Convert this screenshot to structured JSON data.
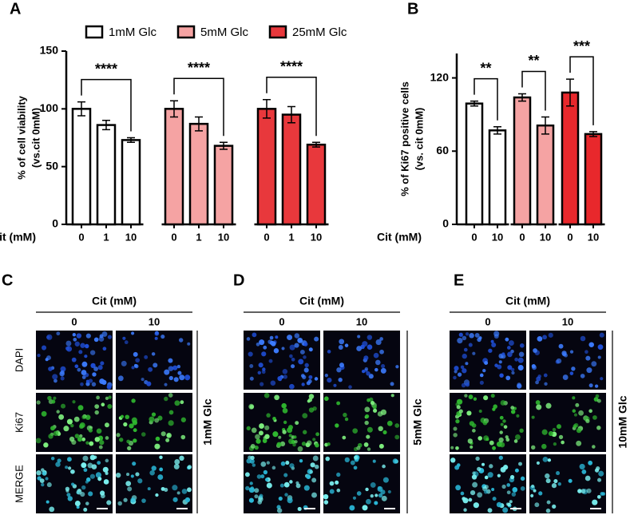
{
  "chart_data": [
    {
      "type": "bar",
      "panel_label": "A",
      "y_label": [
        "% of cell viability",
        "(vs.cit 0mM)"
      ],
      "x_label": "Cit (mM)",
      "categories": [
        "0",
        "1",
        "10"
      ],
      "series": [
        {
          "name": "1mM Glc",
          "color": "#ffffff",
          "values": [
            100,
            86,
            73
          ],
          "errors": [
            6,
            4,
            2
          ],
          "significance": "****"
        },
        {
          "name": "5mM Glc",
          "color": "#f5a3a3",
          "values": [
            100,
            87,
            68
          ],
          "errors": [
            7,
            6,
            3
          ],
          "significance": "****"
        },
        {
          "name": "25mM Glc",
          "color": "#e8383c",
          "values": [
            100,
            95,
            69
          ],
          "errors": [
            8,
            7,
            2
          ],
          "significance": "****"
        }
      ],
      "ylim": [
        0,
        150
      ],
      "yticks": [
        0,
        50,
        100,
        150
      ],
      "legend": "top",
      "grid": false
    },
    {
      "type": "bar",
      "panel_label": "B",
      "y_label": [
        "% of Ki67 positive cells",
        "(vs. cit 0mM)"
      ],
      "x_label": "Cit (mM)",
      "categories": [
        "0",
        "10"
      ],
      "series": [
        {
          "color": "#ffffff",
          "values": [
            99,
            77
          ],
          "errors": [
            2,
            3
          ],
          "significance": "**"
        },
        {
          "color": "#f5a3a3",
          "values": [
            104,
            81
          ],
          "errors": [
            3,
            7
          ],
          "significance": "**"
        },
        {
          "color": "#e8282c",
          "values": [
            108,
            74
          ],
          "errors": [
            11,
            2
          ],
          "significance": "***"
        }
      ],
      "ylim": [
        0,
        140
      ],
      "yticks": [
        0,
        60,
        120
      ],
      "grid": false
    }
  ],
  "image_panels": [
    {
      "label": "C",
      "header": "Cit (mM)",
      "columns": [
        "0",
        "10"
      ],
      "rows": [
        "DAPI",
        "Ki67",
        "MERGE"
      ],
      "condition": "1mM Glc"
    },
    {
      "label": "D",
      "header": "Cit (mM)",
      "columns": [
        "0",
        "10"
      ],
      "condition": "5mM Glc"
    },
    {
      "label": "E",
      "header": "Cit (mM)",
      "columns": [
        "0",
        "10"
      ],
      "condition": "10mM Glc"
    }
  ]
}
